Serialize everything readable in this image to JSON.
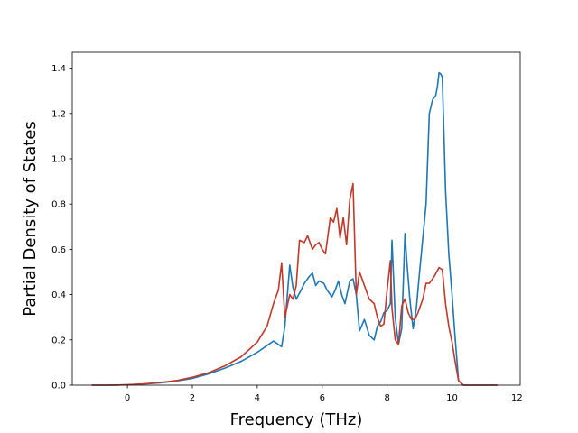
{
  "chart_data": {
    "type": "line",
    "title": "",
    "xlabel": "Frequency (THz)",
    "ylabel": "Partial Density of States",
    "xlim": [
      -1.7,
      12.1
    ],
    "ylim": [
      0,
      1.47
    ],
    "xticks": [
      0,
      2,
      4,
      6,
      8,
      10,
      12
    ],
    "xtick_labels": [
      "0",
      "2",
      "4",
      "6",
      "8",
      "10",
      "12"
    ],
    "yticks": [
      0.0,
      0.2,
      0.4,
      0.6,
      0.8,
      1.0,
      1.2,
      1.4
    ],
    "ytick_labels": [
      "0.0",
      "0.2",
      "0.4",
      "0.6",
      "0.8",
      "1.0",
      "1.2",
      "1.4"
    ],
    "grid": false,
    "legend": "none",
    "series": [
      {
        "color": "#1f77b4",
        "x": [
          -1.1,
          -0.5,
          0.0,
          0.5,
          1.0,
          1.5,
          2.0,
          2.5,
          3.0,
          3.5,
          4.0,
          4.3,
          4.5,
          4.75,
          4.85,
          5.0,
          5.1,
          5.2,
          5.35,
          5.45,
          5.6,
          5.7,
          5.8,
          5.9,
          6.05,
          6.15,
          6.3,
          6.4,
          6.5,
          6.6,
          6.7,
          6.85,
          6.95,
          7.05,
          7.15,
          7.3,
          7.45,
          7.6,
          7.7,
          7.8,
          7.9,
          8.0,
          8.1,
          8.15,
          8.25,
          8.35,
          8.45,
          8.55,
          8.6,
          8.7,
          8.8,
          8.9,
          9.0,
          9.1,
          9.2,
          9.3,
          9.4,
          9.5,
          9.55,
          9.6,
          9.65,
          9.7,
          9.8,
          9.9,
          10.0,
          10.1,
          10.2,
          10.35,
          10.5,
          11.0,
          11.4
        ],
        "y": [
          0.0,
          0.0,
          0.002,
          0.005,
          0.01,
          0.018,
          0.03,
          0.05,
          0.075,
          0.105,
          0.145,
          0.175,
          0.195,
          0.17,
          0.26,
          0.53,
          0.43,
          0.38,
          0.42,
          0.45,
          0.48,
          0.495,
          0.44,
          0.46,
          0.45,
          0.42,
          0.39,
          0.42,
          0.46,
          0.4,
          0.36,
          0.46,
          0.47,
          0.4,
          0.24,
          0.29,
          0.22,
          0.2,
          0.26,
          0.28,
          0.32,
          0.33,
          0.36,
          0.64,
          0.3,
          0.18,
          0.25,
          0.67,
          0.56,
          0.38,
          0.25,
          0.34,
          0.5,
          0.65,
          0.8,
          1.2,
          1.26,
          1.28,
          1.32,
          1.38,
          1.375,
          1.36,
          0.86,
          0.58,
          0.4,
          0.2,
          0.02,
          0.0,
          0.0,
          0.0,
          0.0
        ]
      },
      {
        "color": "#c0392b",
        "x": [
          -1.1,
          -0.5,
          0.0,
          0.5,
          1.0,
          1.5,
          2.0,
          2.5,
          3.0,
          3.5,
          4.0,
          4.3,
          4.5,
          4.65,
          4.75,
          4.85,
          5.0,
          5.1,
          5.2,
          5.3,
          5.45,
          5.55,
          5.7,
          5.8,
          5.9,
          6.0,
          6.1,
          6.25,
          6.35,
          6.45,
          6.55,
          6.65,
          6.75,
          6.85,
          6.95,
          7.05,
          7.15,
          7.3,
          7.45,
          7.6,
          7.7,
          7.8,
          7.9,
          8.0,
          8.1,
          8.15,
          8.25,
          8.35,
          8.45,
          8.55,
          8.65,
          8.75,
          8.85,
          8.95,
          9.1,
          9.2,
          9.3,
          9.45,
          9.6,
          9.7,
          9.8,
          9.9,
          10.0,
          10.1,
          10.2,
          10.35,
          10.5,
          11.0,
          11.4
        ],
        "y": [
          0.0,
          0.0,
          0.002,
          0.006,
          0.012,
          0.02,
          0.035,
          0.055,
          0.085,
          0.125,
          0.19,
          0.26,
          0.36,
          0.42,
          0.54,
          0.3,
          0.4,
          0.38,
          0.44,
          0.64,
          0.63,
          0.66,
          0.6,
          0.62,
          0.63,
          0.6,
          0.58,
          0.74,
          0.72,
          0.78,
          0.65,
          0.74,
          0.62,
          0.82,
          0.89,
          0.4,
          0.5,
          0.44,
          0.38,
          0.36,
          0.3,
          0.26,
          0.27,
          0.42,
          0.55,
          0.34,
          0.2,
          0.18,
          0.35,
          0.38,
          0.32,
          0.29,
          0.29,
          0.32,
          0.38,
          0.45,
          0.45,
          0.48,
          0.52,
          0.51,
          0.36,
          0.26,
          0.19,
          0.1,
          0.02,
          0.0,
          0.0,
          0.0,
          0.0
        ]
      }
    ]
  }
}
